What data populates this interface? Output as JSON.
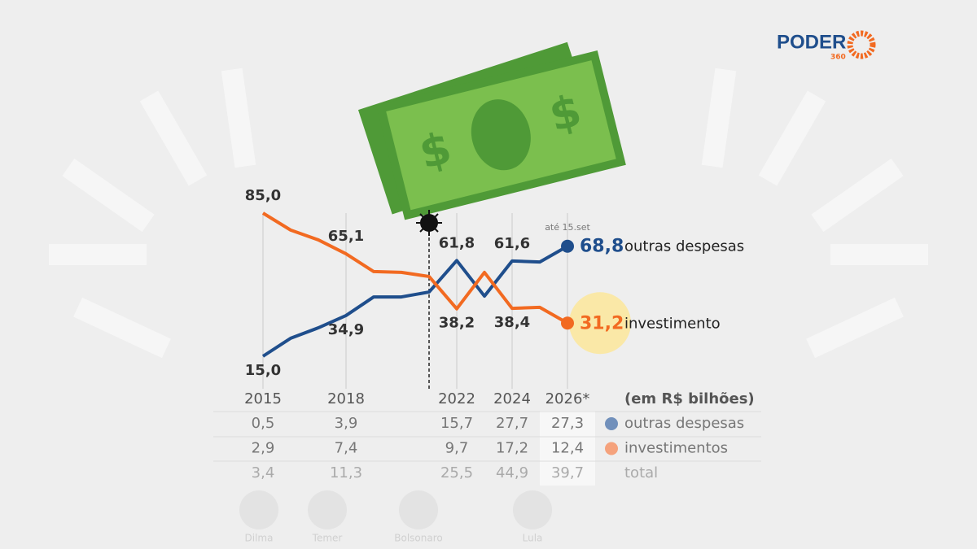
{
  "chart_data": {
    "type": "line",
    "x": [
      2015,
      2016,
      2017,
      2018,
      2019,
      2020,
      2021,
      2022,
      2023,
      2024,
      2025,
      2026
    ],
    "xlim": [
      2015,
      2026
    ],
    "xticks": [
      2015,
      2018,
      2022,
      2024,
      {
        "value": 2026,
        "label": "2026*"
      }
    ],
    "ylim": [
      15,
      85
    ],
    "annotation": "até 15.set",
    "series": [
      {
        "name": "outras despesas",
        "color": "#1f4e8c",
        "values": [
          15.0,
          23.8,
          28.9,
          34.9,
          44.0,
          44.0,
          46.4,
          61.8,
          44.4,
          61.6,
          61.1,
          68.8
        ],
        "value_labels": [
          "15,0",
          null,
          null,
          "34,9",
          null,
          null,
          null,
          "61,8",
          null,
          "61,6",
          null,
          "68,8"
        ]
      },
      {
        "name": "investimento",
        "color": "#f26a21",
        "values": [
          85.0,
          76.7,
          71.9,
          65.1,
          56.4,
          56.0,
          54.0,
          38.2,
          56.0,
          38.4,
          38.9,
          31.2
        ],
        "value_labels": [
          "85,0",
          "",
          "",
          "65,1",
          "",
          "",
          "",
          "38,2",
          "",
          "38,4",
          "",
          "31,2"
        ]
      }
    ]
  },
  "table": {
    "unit": "(em R$ bilhões)",
    "rows": [
      {
        "name": "outras despesas",
        "color": "#7190bb",
        "cells": [
          "0,5",
          "3,9",
          "15,7",
          "27,7",
          "27,3"
        ]
      },
      {
        "name": "investimentos",
        "color": "#f5a27c",
        "cells": [
          "2,9",
          "7,4",
          "9,7",
          "17,2",
          "12,4"
        ]
      },
      {
        "name": "total",
        "color": null,
        "cells": [
          "3,4",
          "11,3",
          "25,5",
          "44,9",
          "39,7"
        ]
      }
    ]
  },
  "logo": {
    "name": "PODER",
    "number": "360"
  },
  "presidents": [
    "Dilma",
    "Temer",
    "Bolsonaro",
    "Lula"
  ]
}
